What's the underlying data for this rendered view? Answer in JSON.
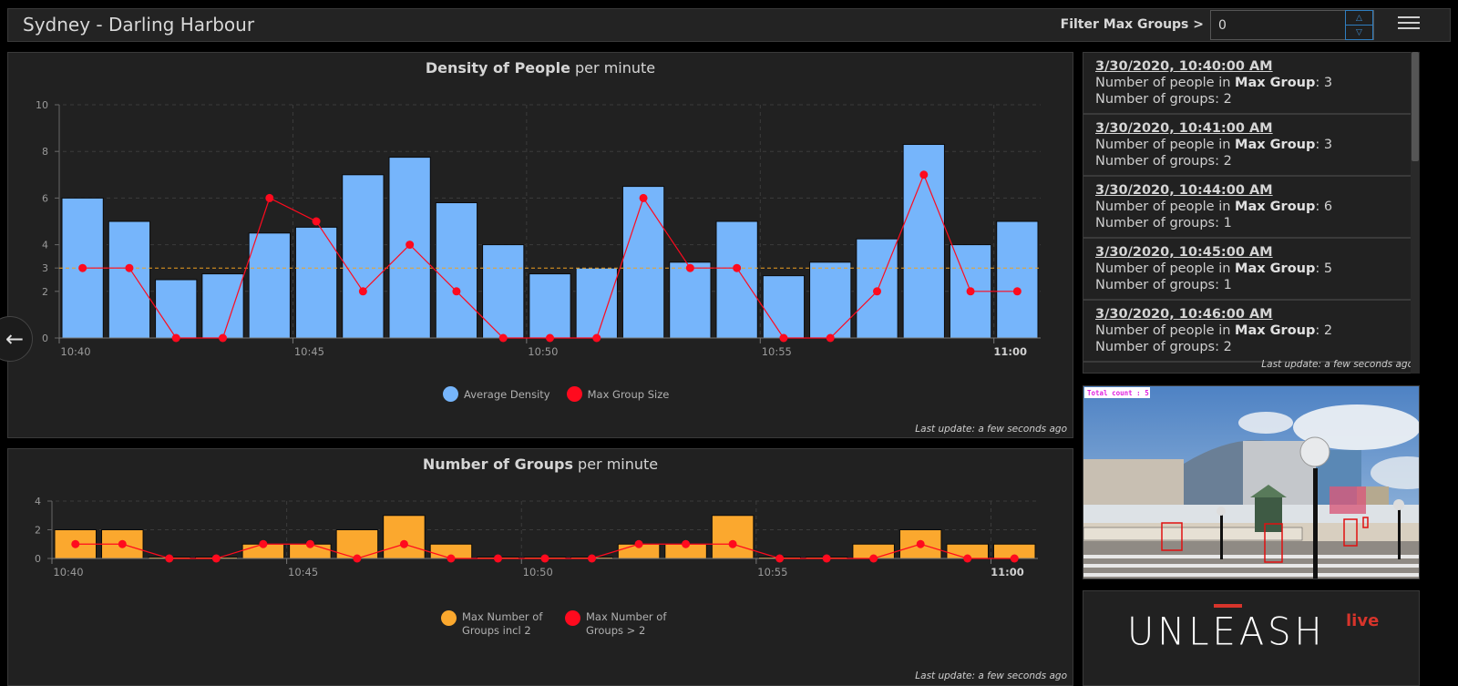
{
  "header": {
    "title": "Sydney - Darling Harbour",
    "filter_label": "Filter Max Groups >",
    "filter_value": "0",
    "menu_icon": "hamburger-menu-icon"
  },
  "density_panel": {
    "title_bold": "Density of People",
    "title_rest": " per minute",
    "last_update": "Last update: a few seconds ago",
    "legend": [
      {
        "label": "Average Density",
        "color": "#76b5fb"
      },
      {
        "label": "Max Group Size",
        "color": "#ff0a1e"
      }
    ]
  },
  "groups_panel": {
    "title_bold": "Number of Groups",
    "title_rest": " per minute",
    "last_update": "Last update: a few seconds ago",
    "legend": [
      {
        "label": "Max Number of Groups incl 2",
        "color": "#fba82e"
      },
      {
        "label": "Max Number of Groups > 2",
        "color": "#ff0a1e"
      }
    ]
  },
  "chart_data": [
    {
      "type": "bar",
      "title": "Density of People per minute",
      "xlabel": "",
      "ylabel": "",
      "ylim": [
        0,
        10
      ],
      "yticks": [
        "0",
        "2",
        "3",
        "4",
        "6",
        "8",
        "10"
      ],
      "xticks": [
        "10:40",
        "10:45",
        "10:50",
        "10:55",
        "11:00"
      ],
      "categories": [
        "10:40",
        "10:41",
        "10:42",
        "10:43",
        "10:44",
        "10:45",
        "10:46",
        "10:47",
        "10:48",
        "10:49",
        "10:50",
        "10:51",
        "10:52",
        "10:53",
        "10:54",
        "10:55",
        "10:56",
        "10:57",
        "10:58",
        "10:59",
        "11:00"
      ],
      "threshold_line": 3,
      "grid": true,
      "legend_position": "bottom",
      "series": [
        {
          "name": "Average Density",
          "type": "bar",
          "color": "#76b5fb",
          "values": [
            6.0,
            5.0,
            2.5,
            2.75,
            4.5,
            4.75,
            7.0,
            7.75,
            5.8,
            4.0,
            2.75,
            3.0,
            6.5,
            3.25,
            5.0,
            2.67,
            3.25,
            4.25,
            8.3,
            4.0,
            5.0
          ]
        },
        {
          "name": "Max Group Size",
          "type": "line",
          "color": "#ff0a1e",
          "values": [
            3,
            3,
            0,
            0,
            6,
            5,
            2,
            4,
            2,
            0,
            0,
            0,
            6,
            3,
            3,
            0,
            0,
            2,
            7,
            2,
            2
          ]
        }
      ]
    },
    {
      "type": "bar",
      "title": "Number of Groups per minute",
      "xlabel": "",
      "ylabel": "",
      "ylim": [
        0,
        4
      ],
      "yticks": [
        "0",
        "2",
        "4"
      ],
      "xticks": [
        "10:40",
        "10:45",
        "10:50",
        "10:55",
        "11:00"
      ],
      "categories": [
        "10:40",
        "10:41",
        "10:42",
        "10:43",
        "10:44",
        "10:45",
        "10:46",
        "10:47",
        "10:48",
        "10:49",
        "10:50",
        "10:51",
        "10:52",
        "10:53",
        "10:54",
        "10:55",
        "10:56",
        "10:57",
        "10:58",
        "10:59",
        "11:00"
      ],
      "grid": true,
      "legend_position": "bottom",
      "series": [
        {
          "name": "Max Number of Groups incl 2",
          "type": "bar",
          "color": "#fba82e",
          "values": [
            2,
            2,
            0,
            0,
            1,
            1,
            2,
            3,
            1,
            0,
            0,
            0,
            1,
            1,
            3,
            0,
            0,
            1,
            2,
            1,
            1
          ]
        },
        {
          "name": "Max Number of Groups > 2",
          "type": "line",
          "color": "#ff0a1e",
          "values": [
            1,
            1,
            0,
            0,
            1,
            1,
            0,
            1,
            0,
            0,
            0,
            0,
            1,
            1,
            1,
            0,
            0,
            0,
            1,
            0,
            0
          ]
        }
      ]
    }
  ],
  "feed": {
    "label_people": "Number of people in ",
    "label_max_group": "Max Group",
    "label_groups": "Number of groups: ",
    "last_update": "Last update: a few seconds ago",
    "items": [
      {
        "timestamp": "3/30/2020, 10:40:00 AM",
        "max_group": "3",
        "groups": "2"
      },
      {
        "timestamp": "3/30/2020, 10:41:00 AM",
        "max_group": "3",
        "groups": "2"
      },
      {
        "timestamp": "3/30/2020, 10:44:00 AM",
        "max_group": "6",
        "groups": "1"
      },
      {
        "timestamp": "3/30/2020, 10:45:00 AM",
        "max_group": "5",
        "groups": "1"
      },
      {
        "timestamp": "3/30/2020, 10:46:00 AM",
        "max_group": "2",
        "groups": "2"
      }
    ]
  },
  "camera": {
    "overlay_text": "Total count : 5"
  },
  "logo": {
    "main": "UNLEASH",
    "suffix": "live"
  }
}
